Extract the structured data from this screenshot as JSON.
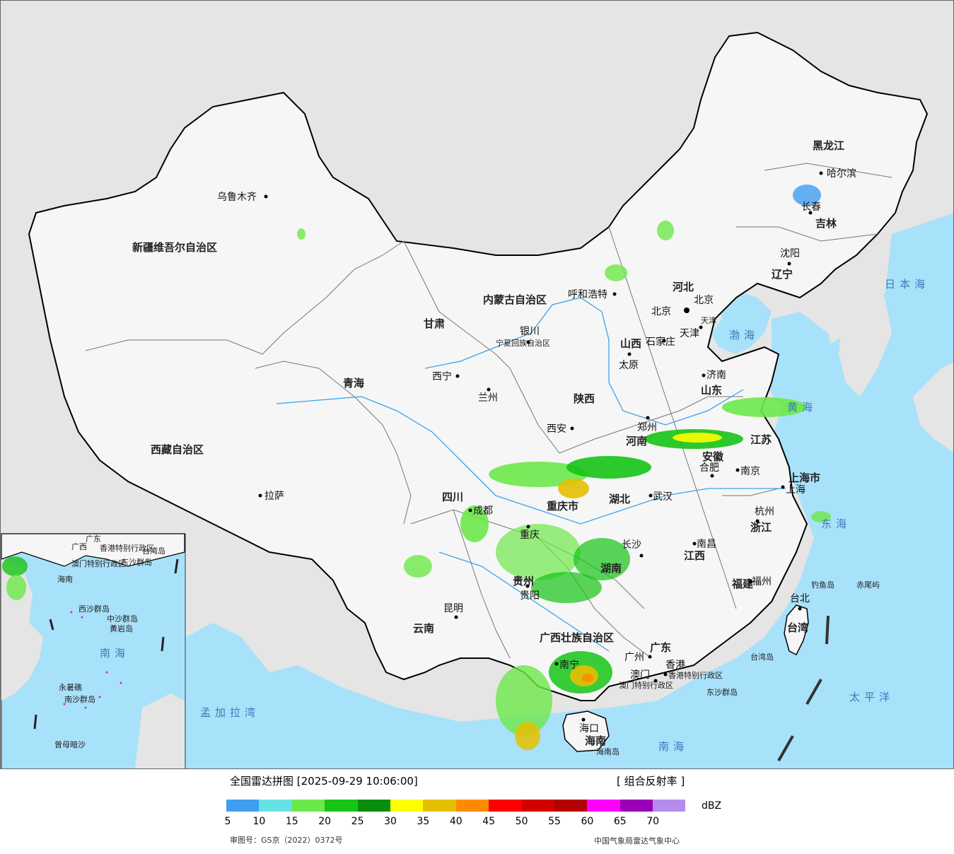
{
  "legend": {
    "title": "全国雷达拼图 [2025-09-29 10:06:00]",
    "product": "[ 组合反射率 ]",
    "unit": "dBZ",
    "ticks": [
      "5",
      "10",
      "15",
      "20",
      "25",
      "30",
      "35",
      "40",
      "45",
      "50",
      "55",
      "60",
      "65",
      "70"
    ],
    "colors": [
      "#3f9ef0",
      "#66e2e4",
      "#6de84a",
      "#16c416",
      "#0a8d0a",
      "#fefe00",
      "#e6c000",
      "#ff8a00",
      "#ff0000",
      "#d40000",
      "#b40000",
      "#ff00ff",
      "#9a00b8",
      "#b48cec"
    ],
    "review_no": "审图号：GS京（2022）0372号",
    "agency": "中国气象局雷达气象中心"
  },
  "colors": {
    "ocean": "#a8e1fa",
    "foreign_land": "#e5e5e5",
    "china_land": "#f6f6f6",
    "border": "#000000",
    "province_line": "#777777",
    "river": "#3aa3e6"
  },
  "map": {
    "provinces": [
      "新疆维吾尔自治区",
      "西藏自治区",
      "青海",
      "甘肃",
      "四川",
      "云南",
      "内蒙古自治区",
      "黑龙江",
      "吉林",
      "辽宁",
      "河北",
      "山西",
      "山东",
      "陕西",
      "河南",
      "湖北",
      "湖南",
      "江西",
      "安徽",
      "江苏",
      "浙江",
      "福建",
      "广东",
      "广西壮族自治区",
      "贵州",
      "重庆市",
      "宁夏回族自治区",
      "海南",
      "台湾",
      "上海市",
      "北京",
      "天津",
      "香港特别行政区",
      "澳门特别行政区"
    ],
    "cities": [
      "乌鲁木齐",
      "拉萨",
      "西宁",
      "兰州",
      "银川",
      "呼和浩特",
      "北京",
      "天津",
      "石家庄",
      "太原",
      "济南",
      "郑州",
      "西安",
      "成都",
      "重庆",
      "武汉",
      "合肥",
      "南京",
      "上海",
      "杭州",
      "长沙",
      "南昌",
      "福州",
      "贵阳",
      "昆明",
      "南宁",
      "广州",
      "香港",
      "澳门",
      "海口",
      "台北",
      "哈尔滨",
      "长春",
      "沈阳"
    ],
    "seas": [
      "渤海",
      "黄海",
      "东海",
      "南海",
      "太平洋",
      "日本海",
      "孟加拉湾"
    ],
    "islands": [
      "钓鱼岛",
      "赤尾屿",
      "台湾岛",
      "东沙群岛",
      "海南岛"
    ],
    "inset": {
      "labels": [
        "广东",
        "广西",
        "香港特别行政区",
        "澳门特别行政区",
        "台湾岛",
        "东沙群岛",
        "海南",
        "南海",
        "中沙群岛",
        "黄岩岛",
        "永暑礁",
        "南沙群岛",
        "曾母暗沙",
        "西沙群岛"
      ]
    }
  }
}
